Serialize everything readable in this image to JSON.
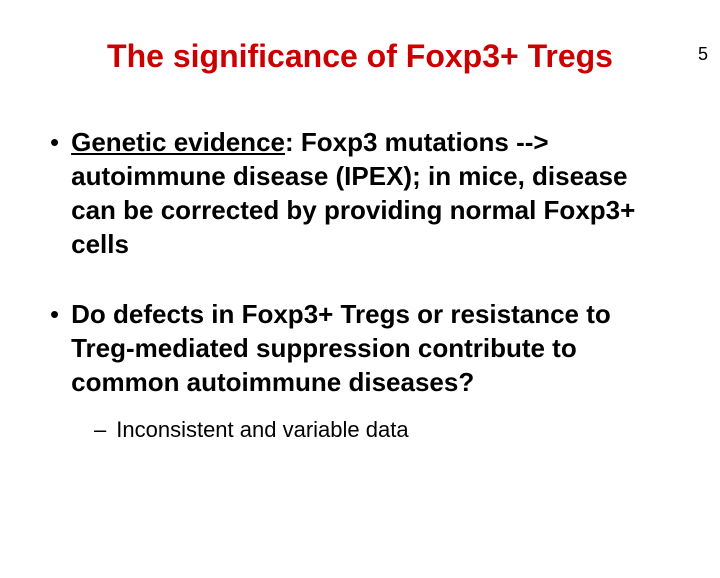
{
  "page_number": "5",
  "title": {
    "text": "The significance of Foxp3+ Tregs",
    "color": "#cc0000",
    "fontsize": 32,
    "fontweight": "bold"
  },
  "bullets": [
    {
      "marker": "•",
      "lead_underlined": "Genetic evidence",
      "rest": ": Foxp3 mutations --> autoimmune disease (IPEX); in mice, disease can be corrected by providing normal Foxp3+ cells",
      "fontsize": 26,
      "fontweight": "bold"
    },
    {
      "marker": "•",
      "text": "Do defects in Foxp3+ Tregs or resistance to Treg-mediated suppression contribute to common autoimmune diseases?",
      "fontsize": 26,
      "fontweight": "bold",
      "sub": {
        "marker": "–",
        "text": "Inconsistent and variable data",
        "fontsize": 22,
        "fontweight": "normal"
      }
    }
  ],
  "colors": {
    "background": "#ffffff",
    "text": "#000000",
    "title": "#cc0000"
  }
}
